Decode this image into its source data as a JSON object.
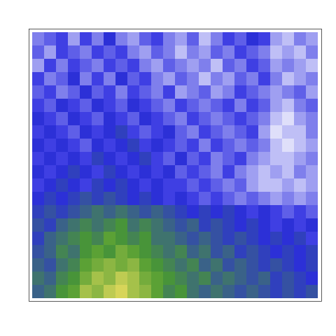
{
  "chart_data": {
    "type": "heatmap",
    "tick_labels": false,
    "grid": false,
    "colors": [
      "#ffffff",
      "#2a2ae0",
      "#4a9a30",
      "#f0e060"
    ],
    "zlim": [
      0,
      1
    ],
    "cells": [
      [
        0.2,
        0.25,
        0.3,
        0.15,
        0.3,
        0.2,
        0.35,
        0.2,
        0.15,
        0.25,
        0.3,
        0.2,
        0.15,
        0.25,
        0.1,
        0.2,
        0.3,
        0.25,
        0.35,
        0.3,
        0.15,
        0.1,
        0.2,
        0.15
      ],
      [
        0.25,
        0.15,
        0.3,
        0.25,
        0.2,
        0.3,
        0.25,
        0.3,
        0.2,
        0.15,
        0.25,
        0.2,
        0.1,
        0.2,
        0.15,
        0.25,
        0.2,
        0.3,
        0.25,
        0.2,
        0.1,
        0.15,
        0.1,
        0.2
      ],
      [
        0.15,
        0.3,
        0.2,
        0.3,
        0.25,
        0.2,
        0.3,
        0.25,
        0.3,
        0.2,
        0.15,
        0.25,
        0.2,
        0.15,
        0.2,
        0.1,
        0.25,
        0.2,
        0.3,
        0.25,
        0.15,
        0.2,
        0.15,
        0.1
      ],
      [
        0.3,
        0.2,
        0.25,
        0.35,
        0.2,
        0.3,
        0.2,
        0.35,
        0.25,
        0.3,
        0.2,
        0.15,
        0.25,
        0.2,
        0.1,
        0.2,
        0.15,
        0.25,
        0.2,
        0.3,
        0.2,
        0.1,
        0.15,
        0.2
      ],
      [
        0.25,
        0.3,
        0.2,
        0.25,
        0.35,
        0.25,
        0.3,
        0.2,
        0.3,
        0.25,
        0.2,
        0.3,
        0.15,
        0.2,
        0.25,
        0.15,
        0.2,
        0.3,
        0.25,
        0.2,
        0.15,
        0.2,
        0.25,
        0.15
      ],
      [
        0.3,
        0.25,
        0.35,
        0.3,
        0.25,
        0.35,
        0.3,
        0.25,
        0.35,
        0.3,
        0.25,
        0.2,
        0.3,
        0.25,
        0.2,
        0.25,
        0.3,
        0.2,
        0.3,
        0.25,
        0.15,
        0.1,
        0.2,
        0.25
      ],
      [
        0.35,
        0.3,
        0.25,
        0.35,
        0.3,
        0.25,
        0.35,
        0.3,
        0.25,
        0.35,
        0.3,
        0.25,
        0.2,
        0.3,
        0.25,
        0.2,
        0.25,
        0.3,
        0.25,
        0.2,
        0.1,
        0.05,
        0.15,
        0.2
      ],
      [
        0.3,
        0.35,
        0.3,
        0.25,
        0.35,
        0.3,
        0.35,
        0.4,
        0.3,
        0.25,
        0.3,
        0.35,
        0.25,
        0.2,
        0.3,
        0.25,
        0.2,
        0.25,
        0.3,
        0.15,
        0.05,
        0.1,
        0.1,
        0.2
      ],
      [
        0.35,
        0.3,
        0.35,
        0.3,
        0.25,
        0.35,
        0.3,
        0.35,
        0.4,
        0.3,
        0.35,
        0.3,
        0.25,
        0.3,
        0.2,
        0.3,
        0.25,
        0.2,
        0.25,
        0.2,
        0.1,
        0.05,
        0.1,
        0.15
      ],
      [
        0.3,
        0.35,
        0.3,
        0.35,
        0.3,
        0.4,
        0.35,
        0.3,
        0.35,
        0.4,
        0.3,
        0.25,
        0.35,
        0.25,
        0.3,
        0.2,
        0.25,
        0.3,
        0.2,
        0.15,
        0.1,
        0.1,
        0.15,
        0.2
      ],
      [
        0.35,
        0.3,
        0.35,
        0.4,
        0.35,
        0.3,
        0.4,
        0.35,
        0.3,
        0.35,
        0.3,
        0.35,
        0.25,
        0.3,
        0.25,
        0.2,
        0.3,
        0.2,
        0.15,
        0.1,
        0.15,
        0.1,
        0.2,
        0.15
      ],
      [
        0.3,
        0.35,
        0.4,
        0.35,
        0.3,
        0.4,
        0.35,
        0.4,
        0.35,
        0.3,
        0.35,
        0.3,
        0.3,
        0.25,
        0.3,
        0.25,
        0.2,
        0.25,
        0.15,
        0.1,
        0.1,
        0.15,
        0.1,
        0.15
      ],
      [
        0.35,
        0.4,
        0.35,
        0.4,
        0.45,
        0.4,
        0.45,
        0.4,
        0.35,
        0.4,
        0.35,
        0.3,
        0.35,
        0.3,
        0.25,
        0.3,
        0.25,
        0.2,
        0.25,
        0.2,
        0.15,
        0.2,
        0.15,
        0.2
      ],
      [
        0.4,
        0.45,
        0.4,
        0.45,
        0.5,
        0.55,
        0.5,
        0.55,
        0.5,
        0.45,
        0.5,
        0.45,
        0.4,
        0.35,
        0.4,
        0.35,
        0.4,
        0.35,
        0.3,
        0.35,
        0.3,
        0.25,
        0.3,
        0.25
      ],
      [
        0.45,
        0.4,
        0.5,
        0.55,
        0.6,
        0.55,
        0.6,
        0.65,
        0.55,
        0.6,
        0.55,
        0.5,
        0.45,
        0.5,
        0.4,
        0.45,
        0.4,
        0.35,
        0.4,
        0.35,
        0.3,
        0.35,
        0.3,
        0.35
      ],
      [
        0.4,
        0.5,
        0.55,
        0.6,
        0.65,
        0.6,
        0.7,
        0.65,
        0.6,
        0.65,
        0.55,
        0.55,
        0.5,
        0.45,
        0.5,
        0.45,
        0.4,
        0.45,
        0.4,
        0.35,
        0.4,
        0.35,
        0.4,
        0.3
      ],
      [
        0.45,
        0.5,
        0.6,
        0.55,
        0.65,
        0.7,
        0.65,
        0.75,
        0.7,
        0.65,
        0.6,
        0.55,
        0.6,
        0.5,
        0.55,
        0.45,
        0.5,
        0.4,
        0.45,
        0.4,
        0.35,
        0.4,
        0.35,
        0.4
      ],
      [
        0.5,
        0.45,
        0.55,
        0.6,
        0.7,
        0.75,
        0.8,
        0.75,
        0.8,
        0.7,
        0.65,
        0.6,
        0.55,
        0.6,
        0.5,
        0.55,
        0.45,
        0.5,
        0.45,
        0.4,
        0.45,
        0.4,
        0.35,
        0.4
      ],
      [
        0.55,
        0.5,
        0.6,
        0.65,
        0.75,
        0.85,
        0.8,
        0.9,
        0.85,
        0.75,
        0.7,
        0.65,
        0.6,
        0.55,
        0.6,
        0.5,
        0.55,
        0.5,
        0.45,
        0.5,
        0.4,
        0.45,
        0.4,
        0.35
      ],
      [
        0.5,
        0.55,
        0.65,
        0.7,
        0.85,
        0.8,
        0.9,
        0.95,
        0.85,
        0.8,
        0.7,
        0.6,
        0.65,
        0.55,
        0.5,
        0.55,
        0.5,
        0.45,
        0.5,
        0.45,
        0.4,
        0.45,
        0.4,
        0.45
      ]
    ]
  }
}
